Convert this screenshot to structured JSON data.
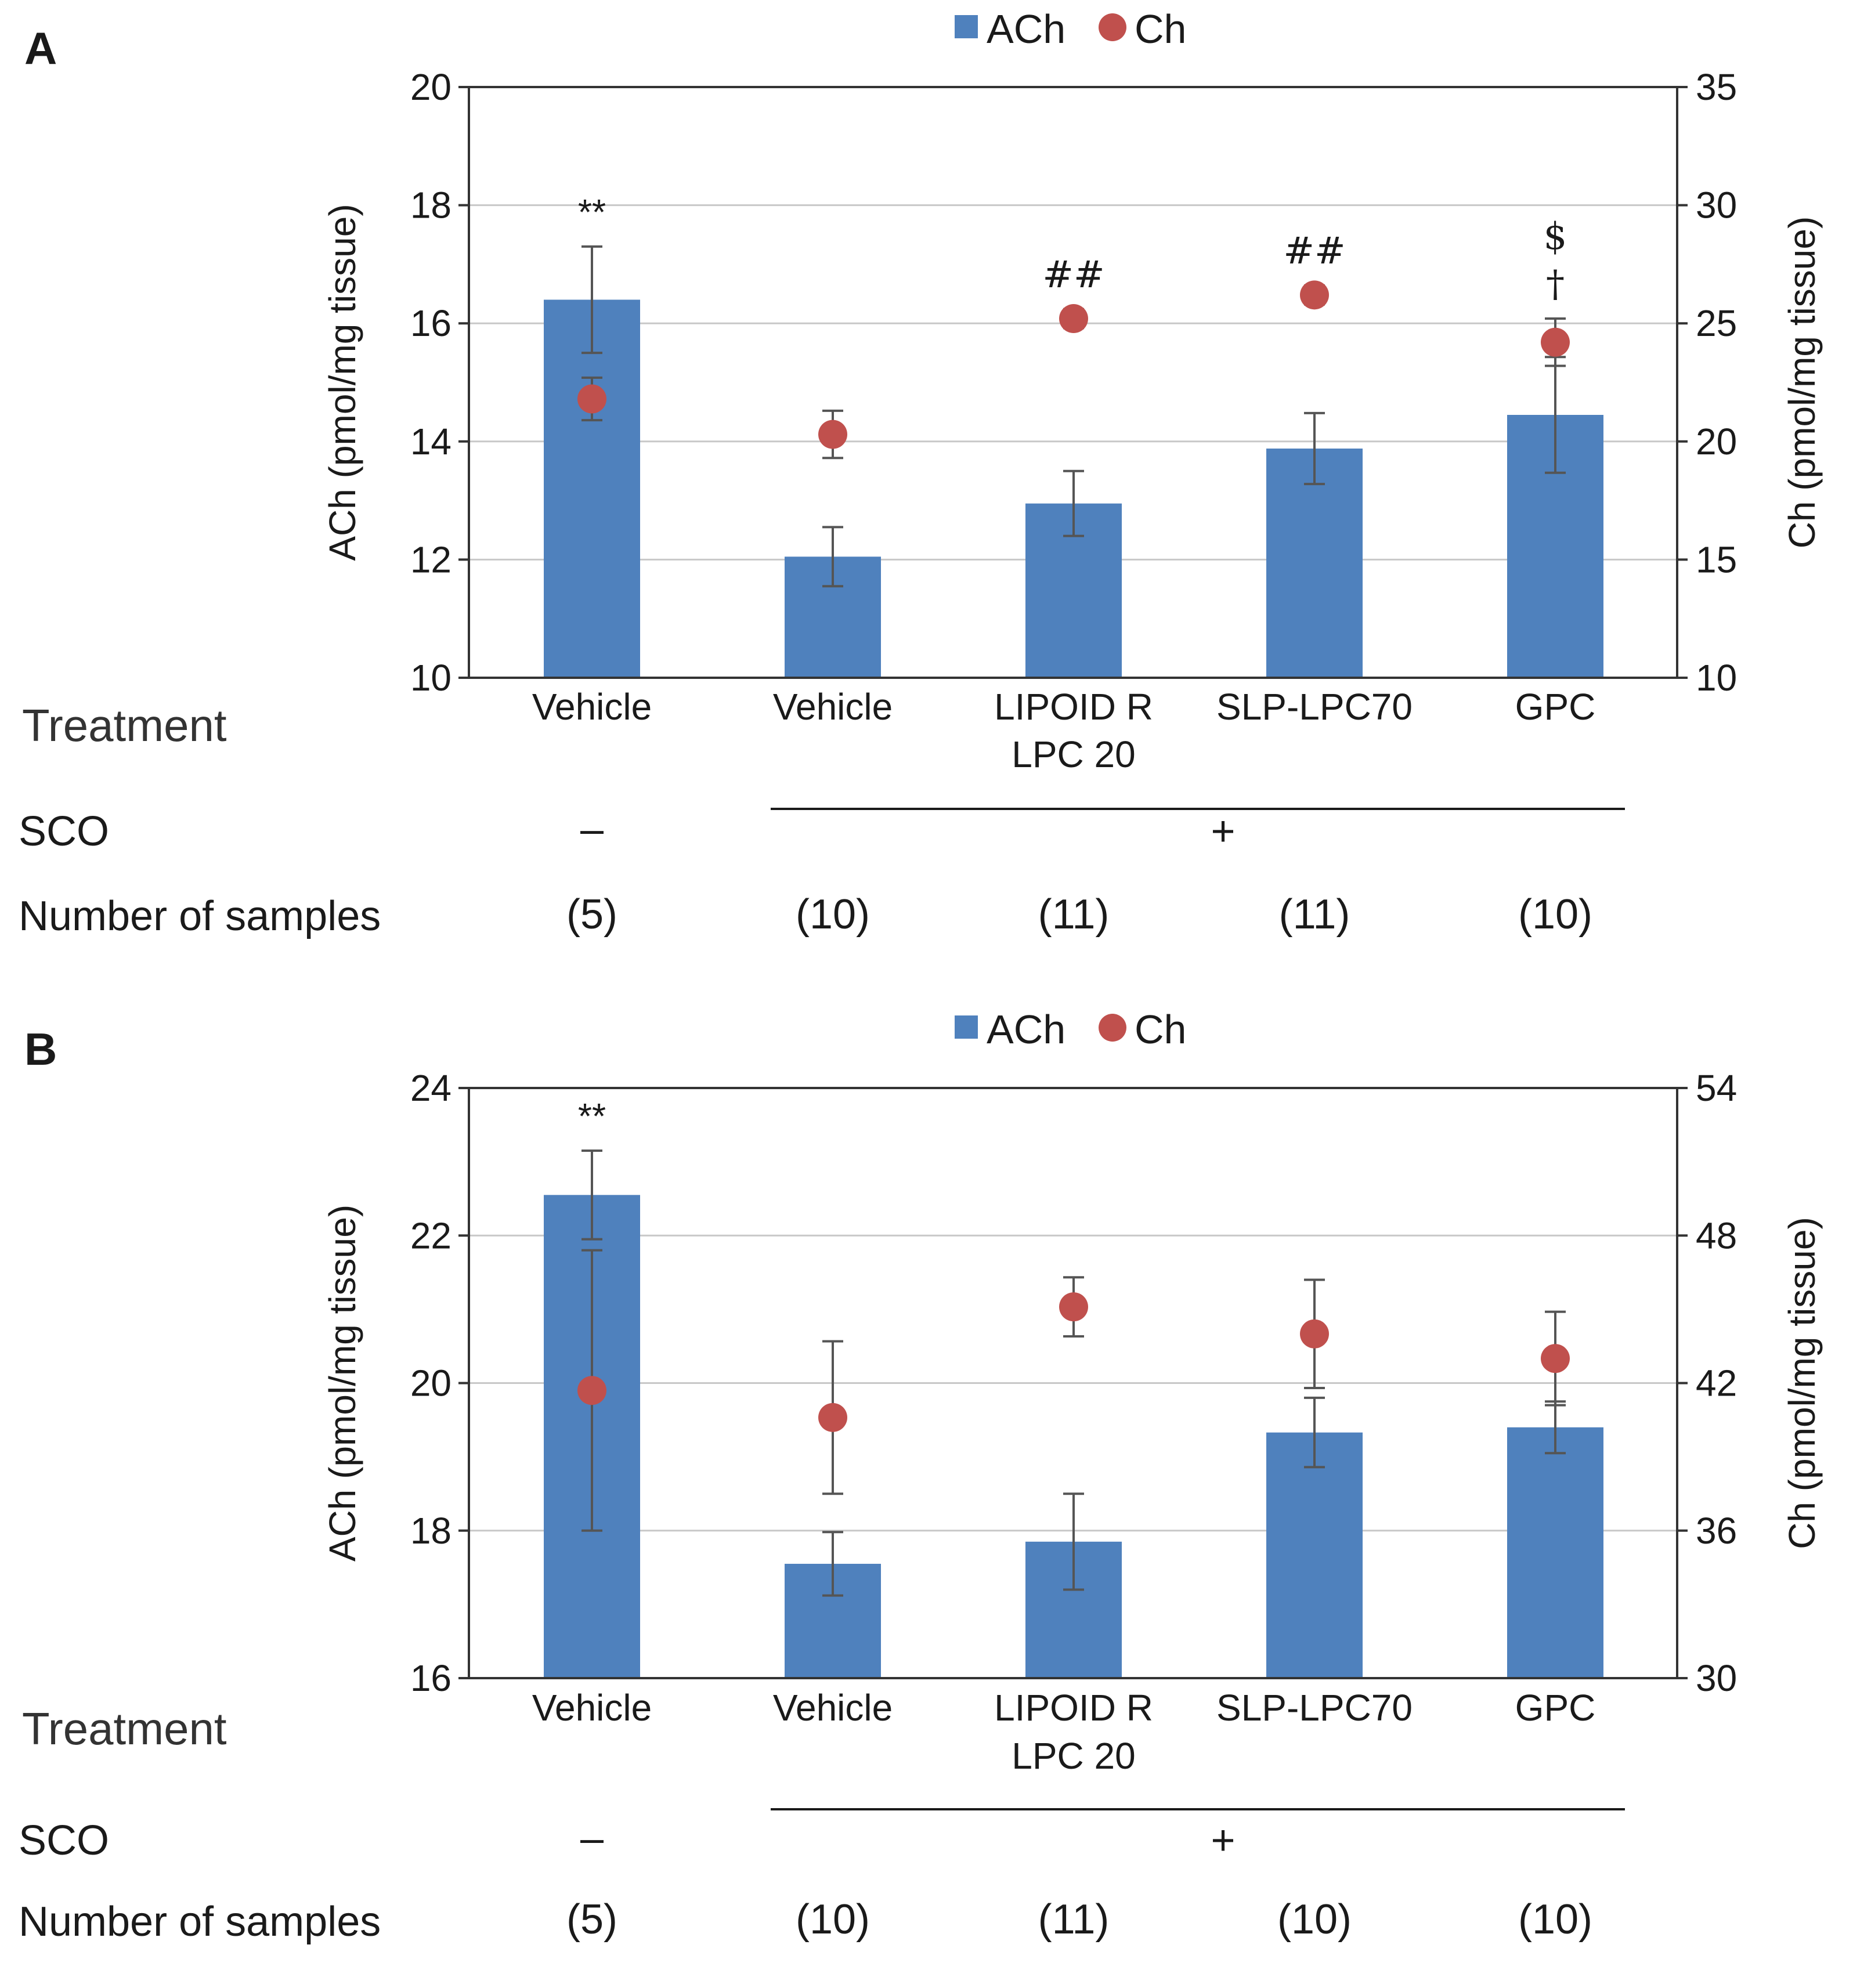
{
  "chart_data": [
    {
      "panel": "A",
      "type": "bar",
      "categories": [
        [
          "Vehicle"
        ],
        [
          "Vehicle"
        ],
        [
          "LIPOID R",
          "LPC 20"
        ],
        [
          "SLP-LPC70"
        ],
        [
          "GPC"
        ]
      ],
      "legend": [
        {
          "name": "ACh",
          "color": "#4f81bd",
          "marker": "square"
        },
        {
          "name": "Ch",
          "color": "#c0504d",
          "marker": "circle"
        }
      ],
      "left_axis": {
        "label": "ACh (pmol/mg tissue)",
        "range": [
          10,
          20
        ],
        "ticks": [
          10,
          12,
          14,
          16,
          18,
          20
        ]
      },
      "right_axis": {
        "label": "Ch (pmol/mg tissue)",
        "range": [
          10,
          35
        ],
        "ticks": [
          10,
          15,
          20,
          25,
          30,
          35
        ]
      },
      "series": [
        {
          "name": "ACh",
          "kind": "bar",
          "axis": "left",
          "values": [
            16.4,
            12.05,
            12.95,
            13.88,
            14.45
          ],
          "errors": [
            0.9,
            0.5,
            0.55,
            0.6,
            0.98
          ]
        },
        {
          "name": "Ch",
          "kind": "point",
          "axis": "right",
          "values": [
            21.8,
            20.3,
            25.2,
            26.2,
            24.2
          ],
          "errors": [
            0.9,
            1.0,
            0.4,
            0.4,
            1.0
          ]
        }
      ],
      "annotations": [
        {
          "category": 0,
          "lines": [
            "**"
          ]
        },
        {
          "category": 2,
          "lines": [
            "##"
          ]
        },
        {
          "category": 3,
          "lines": [
            "##"
          ]
        },
        {
          "category": 4,
          "lines": [
            "$",
            "†"
          ]
        }
      ],
      "table": {
        "treatment_label": "Treatment",
        "sco_label": "SCO",
        "sco_minus": "–",
        "sco_plus": "+",
        "samples_label": "Number of samples",
        "samples": [
          "(5)",
          "(10)",
          "(11)",
          "(11)",
          "(10)"
        ]
      }
    },
    {
      "panel": "B",
      "type": "bar",
      "categories": [
        [
          "Vehicle"
        ],
        [
          "Vehicle"
        ],
        [
          "LIPOID R",
          "LPC 20"
        ],
        [
          "SLP-LPC70"
        ],
        [
          "GPC"
        ]
      ],
      "legend": [
        {
          "name": "ACh",
          "color": "#4f81bd",
          "marker": "square"
        },
        {
          "name": "Ch",
          "color": "#c0504d",
          "marker": "circle"
        }
      ],
      "left_axis": {
        "label": "ACh (pmol/mg tissue)",
        "range": [
          16,
          24
        ],
        "ticks": [
          16,
          18,
          20,
          22,
          24
        ]
      },
      "right_axis": {
        "label": "Ch (pmol/mg tissue)",
        "range": [
          30,
          54
        ],
        "ticks": [
          30,
          36,
          42,
          48,
          54
        ]
      },
      "series": [
        {
          "name": "ACh",
          "kind": "bar",
          "axis": "left",
          "values": [
            22.55,
            17.55,
            17.85,
            19.33,
            19.4
          ],
          "errors": [
            0.6,
            0.43,
            0.65,
            0.47,
            0.35
          ]
        },
        {
          "name": "Ch",
          "kind": "point",
          "axis": "right",
          "values": [
            41.7,
            40.6,
            45.1,
            44.0,
            43.0
          ],
          "errors": [
            5.7,
            3.1,
            1.2,
            2.2,
            1.9
          ]
        }
      ],
      "annotations": [
        {
          "category": 0,
          "lines": [
            "**"
          ]
        }
      ],
      "table": {
        "treatment_label": "Treatment",
        "sco_label": "SCO",
        "sco_minus": "–",
        "sco_plus": "+",
        "samples_label": "Number of samples",
        "samples": [
          "(5)",
          "(10)",
          "(11)",
          "(10)",
          "(10)"
        ]
      }
    }
  ]
}
